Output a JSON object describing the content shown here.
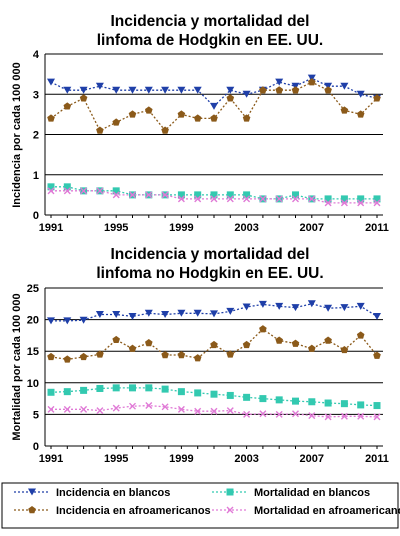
{
  "colors": {
    "white_incidence": "#1f3fa8",
    "black_incidence": "#8b5a1a",
    "white_mortality": "#33c9b0",
    "black_mortality": "#e07ad6",
    "grid": "#000000"
  },
  "chart_data": [
    {
      "type": "line",
      "title_line1": "Incidencia y mortalidad del",
      "title_line2": "linfoma de Hodgkin en EE. UU.",
      "ylabel": "Incidencia por cada 100 000",
      "xlabel": "",
      "ylim": [
        0,
        4
      ],
      "yticks": [
        0,
        1,
        2,
        3,
        4
      ],
      "xticks": [
        1991,
        1995,
        1999,
        2003,
        2007,
        2011
      ],
      "grid": "horizontal",
      "x": [
        1991,
        1992,
        1993,
        1994,
        1995,
        1996,
        1997,
        1998,
        1999,
        2000,
        2001,
        2002,
        2003,
        2004,
        2005,
        2006,
        2007,
        2008,
        2009,
        2010,
        2011
      ],
      "series": [
        {
          "name": "Incidencia en blancos",
          "key": "wi",
          "values": [
            3.3,
            3.1,
            3.1,
            3.2,
            3.1,
            3.1,
            3.1,
            3.1,
            3.1,
            3.1,
            2.7,
            3.1,
            3.0,
            3.1,
            3.3,
            3.2,
            3.4,
            3.2,
            3.2,
            3.0,
            2.9
          ]
        },
        {
          "name": "Incidencia en afroamericanos",
          "key": "bi",
          "values": [
            2.4,
            2.7,
            2.9,
            2.1,
            2.3,
            2.5,
            2.6,
            2.1,
            2.5,
            2.4,
            2.4,
            2.9,
            2.4,
            3.1,
            3.1,
            3.1,
            3.3,
            3.1,
            2.6,
            2.5,
            2.9
          ]
        },
        {
          "name": "Mortalidad en blancos",
          "key": "wm",
          "values": [
            0.7,
            0.7,
            0.6,
            0.6,
            0.6,
            0.5,
            0.5,
            0.5,
            0.5,
            0.5,
            0.5,
            0.5,
            0.5,
            0.4,
            0.4,
            0.5,
            0.4,
            0.4,
            0.4,
            0.4,
            0.4
          ]
        },
        {
          "name": "Mortalidad en afroamericanos",
          "key": "bm",
          "values": [
            0.6,
            0.6,
            0.6,
            0.6,
            0.5,
            0.5,
            0.5,
            0.5,
            0.4,
            0.4,
            0.4,
            0.4,
            0.4,
            0.4,
            0.4,
            0.4,
            0.4,
            0.3,
            0.3,
            0.3,
            0.3
          ]
        }
      ]
    },
    {
      "type": "line",
      "title_line1": "Incidencia y mortalidad del",
      "title_line2": "linfoma no Hodgkin en EE. UU.",
      "ylabel": "Mortalidad por cada 100 000",
      "xlabel": "",
      "ylim": [
        0,
        25
      ],
      "yticks": [
        0,
        5,
        10,
        15,
        20,
        25
      ],
      "xticks": [
        1991,
        1995,
        1999,
        2003,
        2007,
        2011
      ],
      "grid": "horizontal",
      "x": [
        1991,
        1992,
        1993,
        1994,
        1995,
        1996,
        1997,
        1998,
        1999,
        2000,
        2001,
        2002,
        2003,
        2004,
        2005,
        2006,
        2007,
        2008,
        2009,
        2010,
        2011
      ],
      "series": [
        {
          "name": "Incidencia en blancos",
          "key": "wi",
          "values": [
            19.8,
            19.8,
            19.9,
            20.8,
            20.8,
            20.5,
            21.0,
            20.8,
            21.0,
            21.0,
            20.9,
            21.3,
            22.0,
            22.4,
            22.1,
            21.9,
            22.5,
            21.8,
            21.9,
            22.1,
            20.5
          ]
        },
        {
          "name": "Incidencia en afroamericanos",
          "key": "bi",
          "values": [
            14.1,
            13.7,
            14.1,
            14.5,
            16.8,
            15.4,
            16.3,
            14.4,
            14.4,
            13.9,
            16.0,
            14.5,
            16.0,
            18.5,
            16.7,
            16.2,
            15.4,
            16.7,
            15.2,
            17.5,
            14.3
          ]
        },
        {
          "name": "Mortalidad en blancos",
          "key": "wm",
          "values": [
            8.5,
            8.6,
            8.8,
            9.1,
            9.2,
            9.2,
            9.2,
            9.0,
            8.6,
            8.4,
            8.2,
            8.0,
            7.7,
            7.5,
            7.3,
            7.1,
            7.0,
            6.8,
            6.7,
            6.5,
            6.4
          ]
        },
        {
          "name": "Mortalidad en afroamericanos",
          "key": "bm",
          "values": [
            5.8,
            5.8,
            5.8,
            5.6,
            6.0,
            6.3,
            6.4,
            6.2,
            5.8,
            5.5,
            5.5,
            5.6,
            5.0,
            5.1,
            5.0,
            5.1,
            4.8,
            4.6,
            4.7,
            4.7,
            4.6
          ]
        }
      ]
    }
  ],
  "legend": [
    {
      "label": "Incidencia en blancos",
      "key": "wi"
    },
    {
      "label": "Mortalidad en blancos",
      "key": "wm"
    },
    {
      "label": "Incidencia en afroamericanos",
      "key": "bi"
    },
    {
      "label": "Mortalidad en afroamericanos",
      "key": "bm"
    }
  ]
}
